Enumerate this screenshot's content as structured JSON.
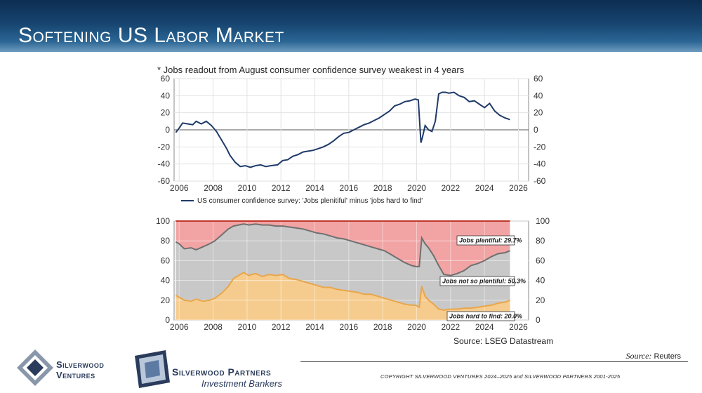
{
  "header": {
    "title": "Softening US Labor Market"
  },
  "chart_data": [
    {
      "type": "line",
      "subtitle": "* Jobs readout from August consumer confidence survey weakest in 4 years",
      "x_ticks": [
        "2006",
        "2008",
        "2010",
        "2012",
        "2014",
        "2016",
        "2018",
        "2020",
        "2022",
        "2024",
        "2026"
      ],
      "y_ticks": [
        "60",
        "40",
        "20",
        "0",
        "-20",
        "-40",
        "-60"
      ],
      "xlim": [
        2005.7,
        2026.6
      ],
      "ylim": [
        -60,
        60
      ],
      "grid": true,
      "legend_position": "bottom-left",
      "series": [
        {
          "name": "US consumer confidence survey: 'Jobs plenitiful' minus 'jobs hard to find'",
          "color": "#1f3a68",
          "x": [
            2005.8,
            2006.0,
            2006.2,
            2006.5,
            2006.8,
            2007.0,
            2007.3,
            2007.6,
            2007.9,
            2008.2,
            2008.5,
            2008.8,
            2009.0,
            2009.3,
            2009.6,
            2009.9,
            2010.2,
            2010.5,
            2010.8,
            2011.1,
            2011.4,
            2011.8,
            2012.1,
            2012.4,
            2012.7,
            2013.0,
            2013.3,
            2013.6,
            2013.9,
            2014.2,
            2014.5,
            2014.8,
            2015.1,
            2015.4,
            2015.7,
            2016.0,
            2016.3,
            2016.6,
            2016.9,
            2017.2,
            2017.5,
            2017.8,
            2018.1,
            2018.4,
            2018.7,
            2019.0,
            2019.3,
            2019.6,
            2019.9,
            2020.1,
            2020.25,
            2020.35,
            2020.5,
            2020.7,
            2020.9,
            2021.1,
            2021.3,
            2021.5,
            2021.7,
            2021.9,
            2022.2,
            2022.5,
            2022.8,
            2023.1,
            2023.4,
            2023.7,
            2024.0,
            2024.3,
            2024.6,
            2024.9,
            2025.2,
            2025.5
          ],
          "values": [
            -3,
            2,
            8,
            7,
            6,
            10,
            7,
            10,
            5,
            -2,
            -12,
            -22,
            -30,
            -38,
            -43,
            -42,
            -44,
            -42,
            -41,
            -43,
            -42,
            -41,
            -36,
            -35,
            -31,
            -29,
            -26,
            -25,
            -24,
            -22,
            -20,
            -17,
            -13,
            -8,
            -4,
            -3,
            0,
            3,
            6,
            8,
            11,
            14,
            18,
            22,
            28,
            30,
            33,
            34,
            36,
            35,
            -15,
            -8,
            5,
            0,
            -2,
            10,
            42,
            44,
            44,
            43,
            44,
            40,
            38,
            33,
            34,
            30,
            26,
            31,
            22,
            17,
            14,
            12
          ]
        }
      ]
    },
    {
      "type": "area",
      "x_ticks": [
        "2006",
        "2008",
        "2010",
        "2012",
        "2014",
        "2016",
        "2018",
        "2020",
        "2022",
        "2024",
        "2026"
      ],
      "y_ticks": [
        "100",
        "80",
        "60",
        "40",
        "20",
        "0"
      ],
      "xlim": [
        2005.7,
        2026.6
      ],
      "ylim": [
        0,
        100
      ],
      "grid": true,
      "annotations": [
        "Jobs plentiful: 29.7%",
        "Jobs not so plentiful: 50.3%",
        "Jobs hard to find: 20.0%"
      ],
      "series": [
        {
          "name": "Jobs hard to find",
          "color": "#e9a64a",
          "fill": "#f6cc8e",
          "x": [
            2005.8,
            2006.0,
            2006.3,
            2006.7,
            2007.0,
            2007.4,
            2007.8,
            2008.1,
            2008.5,
            2008.9,
            2009.2,
            2009.5,
            2009.8,
            2010.1,
            2010.5,
            2010.9,
            2011.3,
            2011.7,
            2012.1,
            2012.5,
            2012.9,
            2013.3,
            2013.7,
            2014.1,
            2014.5,
            2014.9,
            2015.3,
            2015.7,
            2016.1,
            2016.5,
            2016.9,
            2017.3,
            2017.7,
            2018.1,
            2018.5,
            2018.9,
            2019.3,
            2019.7,
            2019.95,
            2020.15,
            2020.3,
            2020.5,
            2020.7,
            2021.0,
            2021.3,
            2021.6,
            2022.0,
            2022.4,
            2022.8,
            2023.2,
            2023.6,
            2024.0,
            2024.4,
            2024.8,
            2025.2,
            2025.5
          ],
          "values": [
            25,
            23,
            20,
            19,
            21,
            19,
            20,
            22,
            27,
            34,
            42,
            45,
            48,
            45,
            47,
            44,
            46,
            45,
            46,
            42,
            41,
            39,
            37,
            35,
            33,
            33,
            31,
            30,
            29,
            28,
            26,
            26,
            24,
            22,
            20,
            18,
            16,
            15,
            15,
            13,
            34,
            24,
            20,
            16,
            11,
            10,
            11,
            11,
            12,
            12,
            13,
            14,
            15,
            17,
            18,
            20
          ]
        },
        {
          "name": "Jobs not so plentiful",
          "color": "#707070",
          "fill": "#c8c8c8",
          "x": [
            2005.8,
            2006.0,
            2006.3,
            2006.7,
            2007.0,
            2007.4,
            2007.8,
            2008.1,
            2008.5,
            2008.9,
            2009.2,
            2009.5,
            2009.8,
            2010.1,
            2010.5,
            2010.9,
            2011.3,
            2011.7,
            2012.1,
            2012.5,
            2012.9,
            2013.3,
            2013.7,
            2014.1,
            2014.5,
            2014.9,
            2015.3,
            2015.7,
            2016.1,
            2016.5,
            2016.9,
            2017.3,
            2017.7,
            2018.1,
            2018.5,
            2018.9,
            2019.3,
            2019.7,
            2019.95,
            2020.15,
            2020.3,
            2020.5,
            2020.7,
            2021.0,
            2021.3,
            2021.6,
            2022.0,
            2022.4,
            2022.8,
            2023.2,
            2023.6,
            2024.0,
            2024.4,
            2024.8,
            2025.2,
            2025.5
          ],
          "values": [
            79,
            77,
            72,
            73,
            71,
            74,
            77,
            80,
            86,
            92,
            95,
            96,
            97,
            96,
            97,
            96,
            96,
            95,
            95,
            94,
            93,
            92,
            90,
            88,
            87,
            85,
            83,
            82,
            80,
            78,
            76,
            74,
            72,
            70,
            66,
            62,
            58,
            55,
            54,
            54,
            83,
            77,
            73,
            65,
            55,
            46,
            45,
            47,
            50,
            55,
            57,
            60,
            64,
            67,
            68,
            70
          ]
        },
        {
          "name": "Jobs plentiful",
          "color": "#c0392b",
          "fill": "#f2a3a3",
          "values": [
            100
          ]
        }
      ]
    }
  ],
  "source": {
    "datastream": "Source: LSEG Datastream",
    "reuters_label": "Source:",
    "reuters_value": "Reuters"
  },
  "footer": {
    "copyright": "COPYRIGHT SILVERWOOD VENTURES 2024–2025 and SILVERWOOD PARTNERS 2001-2025"
  },
  "logos": {
    "ventures_line1": "Silverwood",
    "ventures_line2": "Ventures",
    "partners_name": "Silverwood Partners",
    "partners_sub": "Investment Bankers"
  }
}
